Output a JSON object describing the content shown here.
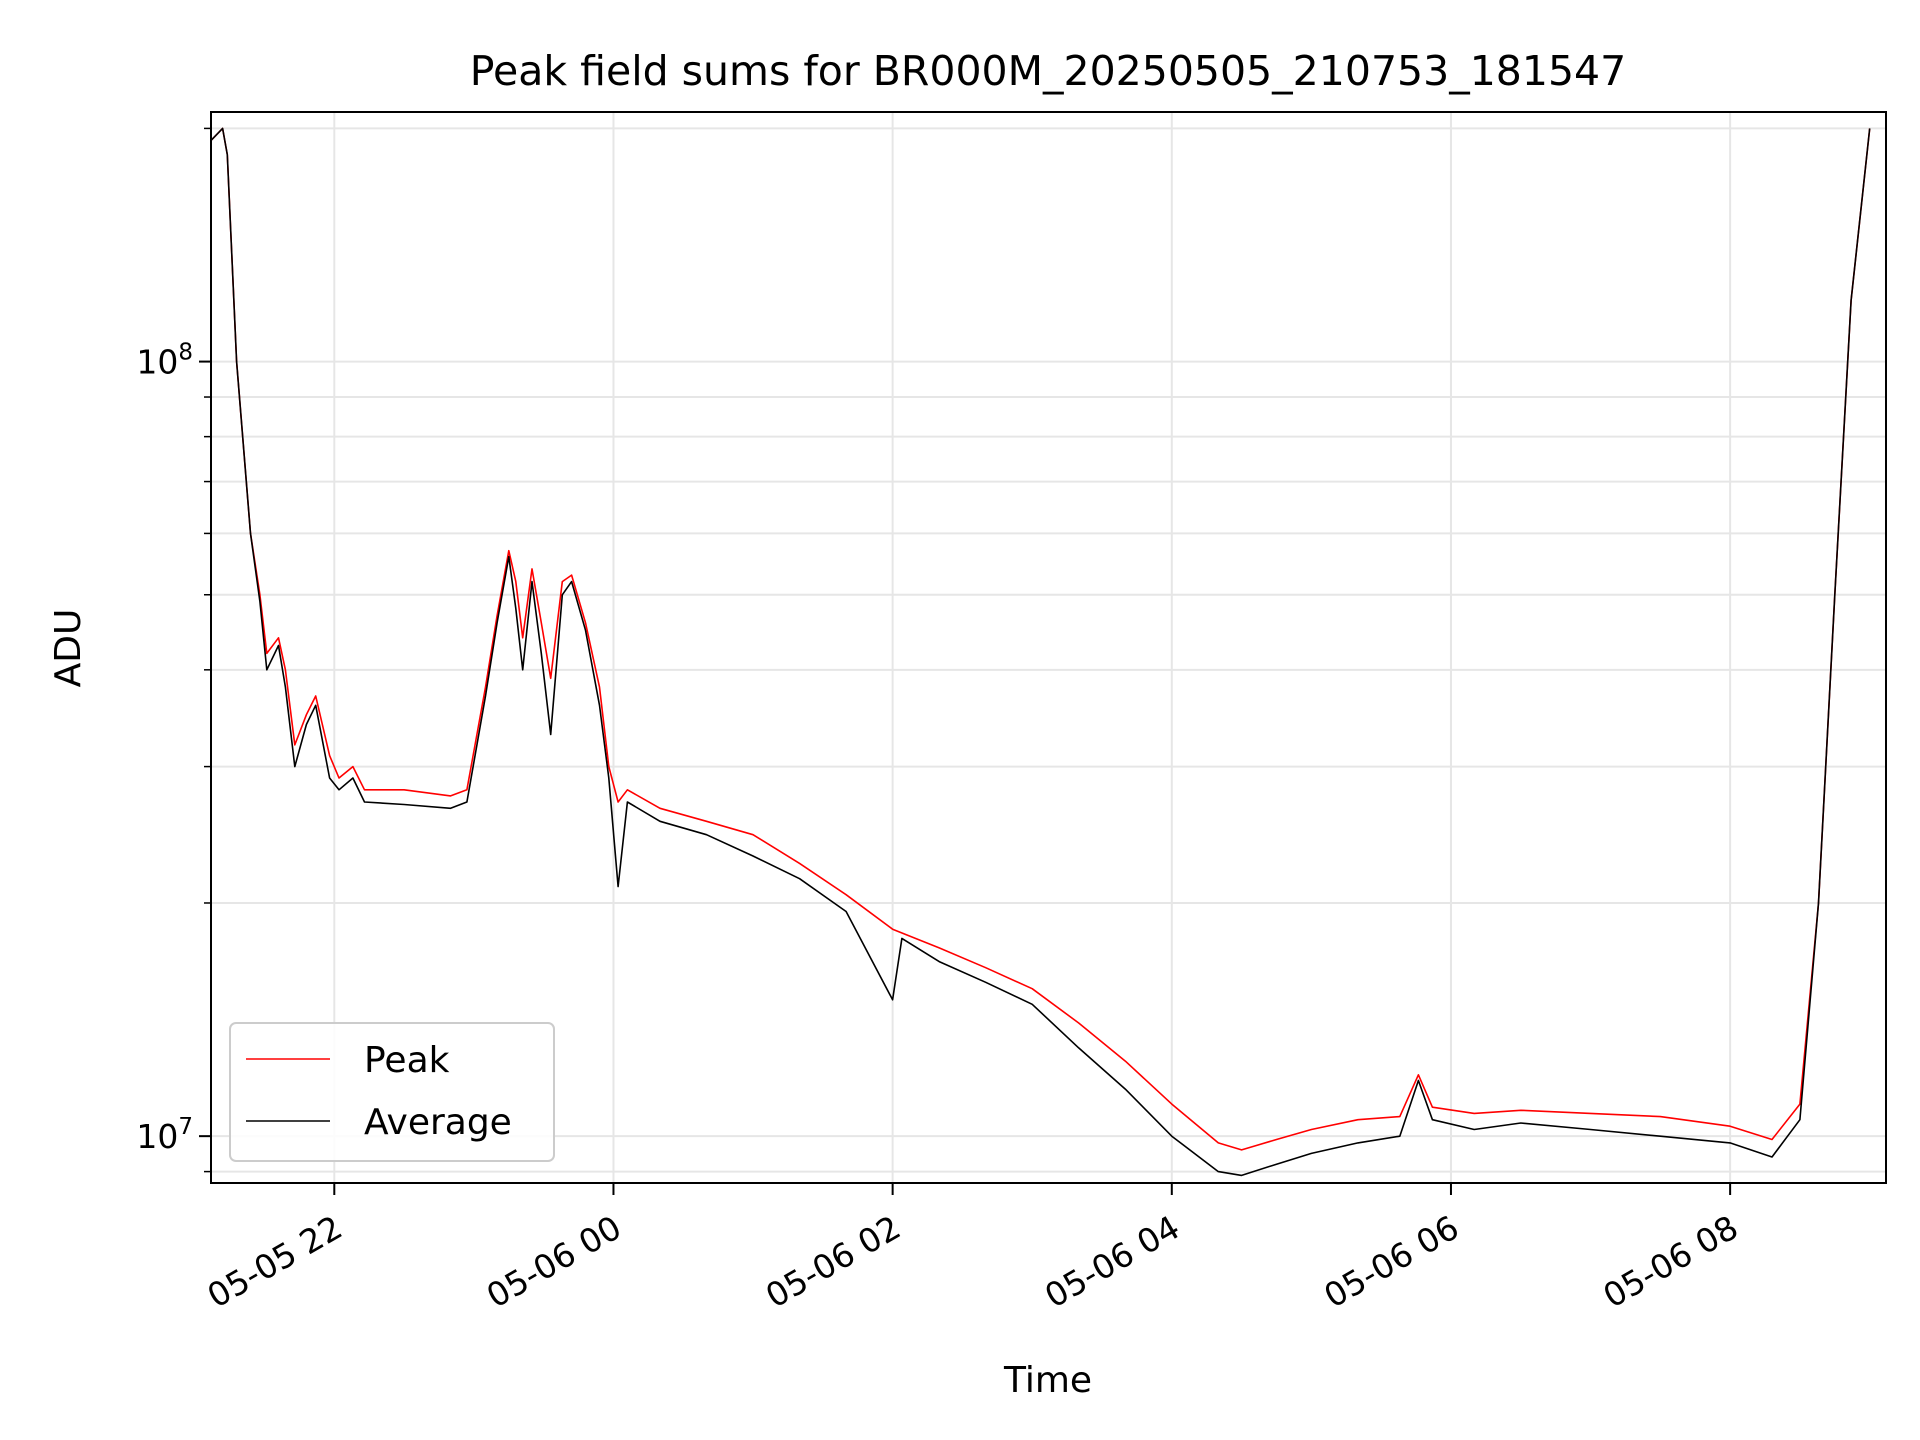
{
  "chart_data": {
    "type": "line",
    "title": "Peak field sums for BR000M_20250505_210753_181547",
    "xlabel": "Time",
    "ylabel": "ADU",
    "yscale": "log",
    "grid": true,
    "legend_position": "lower-left",
    "xlim": [
      "2025-05-05 21:07",
      "2025-05-06 09:07"
    ],
    "ylim": [
      8700000,
      210000000
    ],
    "x_ticks": [
      {
        "t": "2025-05-05 22:00",
        "label": "05-05 22"
      },
      {
        "t": "2025-05-06 00:00",
        "label": "05-06 00"
      },
      {
        "t": "2025-05-06 02:00",
        "label": "05-06 02"
      },
      {
        "t": "2025-05-06 04:00",
        "label": "05-06 04"
      },
      {
        "t": "2025-05-06 06:00",
        "label": "05-06 06"
      },
      {
        "t": "2025-05-06 08:00",
        "label": "05-06 08"
      }
    ],
    "y_ticks": [
      {
        "value": 10000000,
        "label": "10",
        "exp": "7"
      },
      {
        "value": 100000000,
        "label": "10",
        "exp": "8"
      }
    ],
    "series": [
      {
        "name": "Peak",
        "color": "#ff0000",
        "points": [
          [
            "2025-05-05 21:07",
            193000000
          ],
          [
            "2025-05-05 21:12",
            200000000
          ],
          [
            "2025-05-05 21:14",
            185000000
          ],
          [
            "2025-05-05 21:18",
            100000000
          ],
          [
            "2025-05-05 21:24",
            60000000
          ],
          [
            "2025-05-05 21:28",
            50000000
          ],
          [
            "2025-05-05 21:31",
            42000000
          ],
          [
            "2025-05-05 21:36",
            44000000
          ],
          [
            "2025-05-05 21:39",
            40000000
          ],
          [
            "2025-05-05 21:43",
            32000000
          ],
          [
            "2025-05-05 21:48",
            35000000
          ],
          [
            "2025-05-05 21:52",
            37000000
          ],
          [
            "2025-05-05 21:58",
            31000000
          ],
          [
            "2025-05-05 22:02",
            29000000
          ],
          [
            "2025-05-05 22:08",
            30000000
          ],
          [
            "2025-05-05 22:13",
            28000000
          ],
          [
            "2025-05-05 22:30",
            28000000
          ],
          [
            "2025-05-05 22:50",
            27500000
          ],
          [
            "2025-05-05 22:57",
            28000000
          ],
          [
            "2025-05-05 23:05",
            38000000
          ],
          [
            "2025-05-05 23:10",
            47000000
          ],
          [
            "2025-05-05 23:15",
            57000000
          ],
          [
            "2025-05-05 23:18",
            52000000
          ],
          [
            "2025-05-05 23:21",
            44000000
          ],
          [
            "2025-05-05 23:25",
            54000000
          ],
          [
            "2025-05-05 23:29",
            46000000
          ],
          [
            "2025-05-05 23:33",
            39000000
          ],
          [
            "2025-05-05 23:38",
            52000000
          ],
          [
            "2025-05-05 23:42",
            53000000
          ],
          [
            "2025-05-05 23:48",
            46000000
          ],
          [
            "2025-05-05 23:54",
            38000000
          ],
          [
            "2025-05-05 23:58",
            30000000
          ],
          [
            "2025-05-06 00:02",
            27000000
          ],
          [
            "2025-05-06 00:06",
            28000000
          ],
          [
            "2025-05-06 00:20",
            26500000
          ],
          [
            "2025-05-06 00:40",
            25500000
          ],
          [
            "2025-05-06 01:00",
            24500000
          ],
          [
            "2025-05-06 01:20",
            22500000
          ],
          [
            "2025-05-06 01:40",
            20500000
          ],
          [
            "2025-05-06 02:00",
            18500000
          ],
          [
            "2025-05-06 02:20",
            17500000
          ],
          [
            "2025-05-06 02:40",
            16500000
          ],
          [
            "2025-05-06 03:00",
            15500000
          ],
          [
            "2025-05-06 03:20",
            14000000
          ],
          [
            "2025-05-06 03:40",
            12500000
          ],
          [
            "2025-05-06 04:00",
            11000000
          ],
          [
            "2025-05-06 04:20",
            9800000
          ],
          [
            "2025-05-06 04:30",
            9600000
          ],
          [
            "2025-05-06 04:45",
            9900000
          ],
          [
            "2025-05-06 05:00",
            10200000
          ],
          [
            "2025-05-06 05:20",
            10500000
          ],
          [
            "2025-05-06 05:38",
            10600000
          ],
          [
            "2025-05-06 05:46",
            12000000
          ],
          [
            "2025-05-06 05:52",
            10900000
          ],
          [
            "2025-05-06 06:10",
            10700000
          ],
          [
            "2025-05-06 06:30",
            10800000
          ],
          [
            "2025-05-06 07:00",
            10700000
          ],
          [
            "2025-05-06 07:30",
            10600000
          ],
          [
            "2025-05-06 08:00",
            10300000
          ],
          [
            "2025-05-06 08:18",
            9900000
          ],
          [
            "2025-05-06 08:30",
            11000000
          ],
          [
            "2025-05-06 08:38",
            20000000
          ],
          [
            "2025-05-06 08:45",
            50000000
          ],
          [
            "2025-05-06 08:52",
            120000000
          ],
          [
            "2025-05-06 09:00",
            200000000
          ]
        ]
      },
      {
        "name": "Average",
        "color": "#000000",
        "points": [
          [
            "2025-05-05 21:07",
            193000000
          ],
          [
            "2025-05-05 21:12",
            200000000
          ],
          [
            "2025-05-05 21:14",
            185000000
          ],
          [
            "2025-05-05 21:18",
            100000000
          ],
          [
            "2025-05-05 21:24",
            60000000
          ],
          [
            "2025-05-05 21:28",
            49000000
          ],
          [
            "2025-05-05 21:31",
            40000000
          ],
          [
            "2025-05-05 21:36",
            43000000
          ],
          [
            "2025-05-05 21:39",
            38000000
          ],
          [
            "2025-05-05 21:43",
            30000000
          ],
          [
            "2025-05-05 21:48",
            34000000
          ],
          [
            "2025-05-05 21:52",
            36000000
          ],
          [
            "2025-05-05 21:58",
            29000000
          ],
          [
            "2025-05-05 22:02",
            28000000
          ],
          [
            "2025-05-05 22:08",
            29000000
          ],
          [
            "2025-05-05 22:13",
            27000000
          ],
          [
            "2025-05-05 22:30",
            26800000
          ],
          [
            "2025-05-05 22:50",
            26500000
          ],
          [
            "2025-05-05 22:57",
            27000000
          ],
          [
            "2025-05-05 23:05",
            37000000
          ],
          [
            "2025-05-05 23:10",
            46000000
          ],
          [
            "2025-05-05 23:15",
            56000000
          ],
          [
            "2025-05-05 23:18",
            48000000
          ],
          [
            "2025-05-05 23:21",
            40000000
          ],
          [
            "2025-05-05 23:25",
            52000000
          ],
          [
            "2025-05-05 23:29",
            42000000
          ],
          [
            "2025-05-05 23:33",
            33000000
          ],
          [
            "2025-05-05 23:38",
            50000000
          ],
          [
            "2025-05-05 23:42",
            52000000
          ],
          [
            "2025-05-05 23:48",
            45000000
          ],
          [
            "2025-05-05 23:54",
            36000000
          ],
          [
            "2025-05-05 23:58",
            29000000
          ],
          [
            "2025-05-06 00:02",
            21000000
          ],
          [
            "2025-05-06 00:06",
            27000000
          ],
          [
            "2025-05-06 00:20",
            25500000
          ],
          [
            "2025-05-06 00:40",
            24500000
          ],
          [
            "2025-05-06 01:00",
            23000000
          ],
          [
            "2025-05-06 01:20",
            21500000
          ],
          [
            "2025-05-06 01:40",
            19500000
          ],
          [
            "2025-05-06 02:00",
            15000000
          ],
          [
            "2025-05-06 02:04",
            18000000
          ],
          [
            "2025-05-06 02:20",
            16800000
          ],
          [
            "2025-05-06 02:40",
            15800000
          ],
          [
            "2025-05-06 03:00",
            14800000
          ],
          [
            "2025-05-06 03:20",
            13000000
          ],
          [
            "2025-05-06 03:40",
            11500000
          ],
          [
            "2025-05-06 04:00",
            10000000
          ],
          [
            "2025-05-06 04:20",
            9000000
          ],
          [
            "2025-05-06 04:30",
            8900000
          ],
          [
            "2025-05-06 04:45",
            9200000
          ],
          [
            "2025-05-06 05:00",
            9500000
          ],
          [
            "2025-05-06 05:20",
            9800000
          ],
          [
            "2025-05-06 05:38",
            10000000
          ],
          [
            "2025-05-06 05:46",
            11800000
          ],
          [
            "2025-05-06 05:52",
            10500000
          ],
          [
            "2025-05-06 06:10",
            10200000
          ],
          [
            "2025-05-06 06:30",
            10400000
          ],
          [
            "2025-05-06 07:00",
            10200000
          ],
          [
            "2025-05-06 07:30",
            10000000
          ],
          [
            "2025-05-06 08:00",
            9800000
          ],
          [
            "2025-05-06 08:18",
            9400000
          ],
          [
            "2025-05-06 08:30",
            10500000
          ],
          [
            "2025-05-06 08:38",
            20000000
          ],
          [
            "2025-05-06 08:45",
            50000000
          ],
          [
            "2025-05-06 08:52",
            120000000
          ],
          [
            "2025-05-06 09:00",
            200000000
          ]
        ]
      }
    ]
  }
}
